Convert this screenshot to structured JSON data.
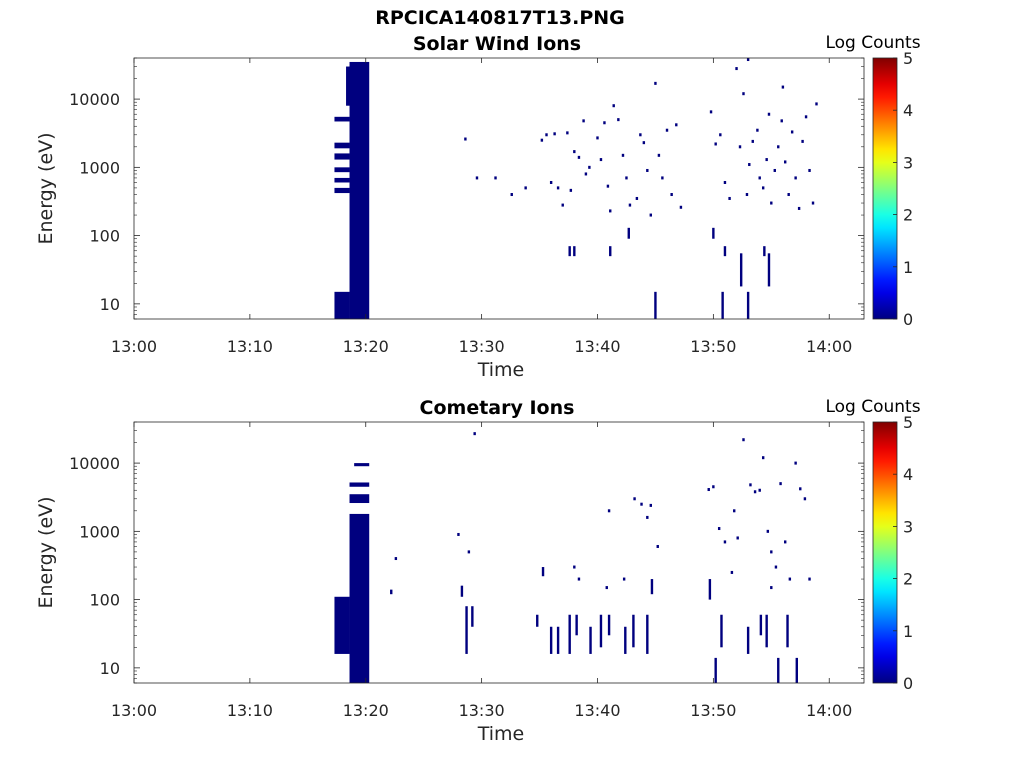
{
  "figure_title": "RPCICA140817T13.PNG",
  "colors": {
    "data": "#00007f",
    "axis": "#262626",
    "background": "#ffffff"
  },
  "colorbar": {
    "title": "Log Counts",
    "ticks": [
      "0",
      "1",
      "2",
      "3",
      "4",
      "5"
    ],
    "colormap": "jet",
    "range": [
      0,
      5
    ]
  },
  "chart_data": [
    {
      "type": "heatmap",
      "title": "Solar Wind Ions",
      "xlabel": "Time",
      "ylabel": "Energy (eV)",
      "x_ticks": [
        "13:00",
        "13:10",
        "13:20",
        "13:30",
        "13:40",
        "13:50",
        "14:00"
      ],
      "y_ticks": [
        "10",
        "100",
        "1000",
        "10000"
      ],
      "xlim_minutes": [
        0,
        63
      ],
      "ylim_eV": [
        6,
        40000
      ],
      "y_scale": "log",
      "value_range": [
        0,
        5
      ],
      "bands": [
        {
          "t0": 17.3,
          "t1": 18.6,
          "e0": 6,
          "e1": 15
        },
        {
          "t0": 17.3,
          "t1": 18.6,
          "e0": 4700,
          "e1": 5500
        },
        {
          "t0": 17.3,
          "t1": 18.6,
          "e0": 1900,
          "e1": 2300
        },
        {
          "t0": 17.3,
          "t1": 18.6,
          "e0": 1300,
          "e1": 1600
        },
        {
          "t0": 17.3,
          "t1": 18.6,
          "e0": 850,
          "e1": 1000
        },
        {
          "t0": 17.3,
          "t1": 18.6,
          "e0": 600,
          "e1": 700
        },
        {
          "t0": 17.3,
          "t1": 18.6,
          "e0": 420,
          "e1": 500
        },
        {
          "t0": 18.3,
          "t1": 18.8,
          "e0": 8000,
          "e1": 30000
        },
        {
          "t0": 18.6,
          "t1": 20.3,
          "e0": 6,
          "e1": 35000
        }
      ],
      "spikes": [
        {
          "t": 37.6,
          "e0": 50,
          "e1": 70
        },
        {
          "t": 38.0,
          "e0": 50,
          "e1": 70
        },
        {
          "t": 41.1,
          "e0": 50,
          "e1": 70
        },
        {
          "t": 42.7,
          "e0": 90,
          "e1": 130
        },
        {
          "t": 45.0,
          "e0": 6,
          "e1": 15
        },
        {
          "t": 50.0,
          "e0": 90,
          "e1": 130
        },
        {
          "t": 50.8,
          "e0": 6,
          "e1": 15
        },
        {
          "t": 51.0,
          "e0": 50,
          "e1": 70
        },
        {
          "t": 52.4,
          "e0": 18,
          "e1": 55
        },
        {
          "t": 53.0,
          "e0": 6,
          "e1": 15
        },
        {
          "t": 54.4,
          "e0": 50,
          "e1": 70
        },
        {
          "t": 54.8,
          "e0": 18,
          "e1": 55
        }
      ],
      "points": [
        [
          28.6,
          2600
        ],
        [
          29.6,
          700
        ],
        [
          31.2,
          700
        ],
        [
          32.6,
          400
        ],
        [
          33.8,
          500
        ],
        [
          35.2,
          2500
        ],
        [
          35.6,
          3000
        ],
        [
          36.3,
          3100
        ],
        [
          36.0,
          600
        ],
        [
          36.6,
          500
        ],
        [
          37.0,
          280
        ],
        [
          37.4,
          3200
        ],
        [
          37.7,
          460
        ],
        [
          38.0,
          1700
        ],
        [
          38.4,
          1400
        ],
        [
          38.8,
          4800
        ],
        [
          39.0,
          800
        ],
        [
          39.3,
          1000
        ],
        [
          40.0,
          2700
        ],
        [
          40.3,
          1300
        ],
        [
          40.6,
          4500
        ],
        [
          40.9,
          530
        ],
        [
          41.1,
          230
        ],
        [
          41.4,
          8000
        ],
        [
          41.8,
          5000
        ],
        [
          42.2,
          1500
        ],
        [
          42.5,
          700
        ],
        [
          42.8,
          280
        ],
        [
          43.4,
          350
        ],
        [
          43.7,
          3000
        ],
        [
          44.0,
          2300
        ],
        [
          44.3,
          900
        ],
        [
          44.6,
          200
        ],
        [
          45.0,
          17000
        ],
        [
          45.3,
          1500
        ],
        [
          45.6,
          700
        ],
        [
          46.0,
          3500
        ],
        [
          46.4,
          400
        ],
        [
          46.8,
          4200
        ],
        [
          47.2,
          260
        ],
        [
          49.8,
          6500
        ],
        [
          50.2,
          2200
        ],
        [
          50.6,
          3000
        ],
        [
          51.0,
          600
        ],
        [
          51.4,
          350
        ],
        [
          52.0,
          28000
        ],
        [
          52.3,
          2000
        ],
        [
          52.6,
          12000
        ],
        [
          52.9,
          400
        ],
        [
          53.1,
          1100
        ],
        [
          53.4,
          2400
        ],
        [
          53.8,
          3500
        ],
        [
          54.0,
          700
        ],
        [
          54.3,
          500
        ],
        [
          54.6,
          1300
        ],
        [
          54.8,
          6000
        ],
        [
          55.0,
          300
        ],
        [
          55.3,
          900
        ],
        [
          55.6,
          2000
        ],
        [
          55.9,
          4800
        ],
        [
          56.2,
          1200
        ],
        [
          56.5,
          400
        ],
        [
          56.8,
          3300
        ],
        [
          57.1,
          700
        ],
        [
          57.4,
          250
        ],
        [
          57.7,
          2400
        ],
        [
          58.0,
          5500
        ],
        [
          58.3,
          900
        ],
        [
          58.6,
          300
        ],
        [
          58.9,
          8500
        ],
        [
          56.0,
          15000
        ],
        [
          53.0,
          38000
        ]
      ]
    },
    {
      "type": "heatmap",
      "title": "Cometary Ions",
      "xlabel": "Time",
      "ylabel": "Energy (eV)",
      "x_ticks": [
        "13:00",
        "13:10",
        "13:20",
        "13:30",
        "13:40",
        "13:50",
        "14:00"
      ],
      "y_ticks": [
        "10",
        "100",
        "1000",
        "10000"
      ],
      "xlim_minutes": [
        0,
        63
      ],
      "ylim_eV": [
        6,
        40000
      ],
      "y_scale": "log",
      "value_range": [
        0,
        5
      ],
      "bands": [
        {
          "t0": 17.3,
          "t1": 18.6,
          "e0": 16,
          "e1": 110
        },
        {
          "t0": 18.6,
          "t1": 20.3,
          "e0": 6,
          "e1": 1800
        },
        {
          "t0": 18.6,
          "t1": 20.3,
          "e0": 2600,
          "e1": 3500
        },
        {
          "t0": 18.6,
          "t1": 20.3,
          "e0": 4500,
          "e1": 5200
        },
        {
          "t0": 19.0,
          "t1": 20.3,
          "e0": 9000,
          "e1": 10000
        }
      ],
      "spikes": [
        {
          "t": 22.2,
          "e0": 120,
          "e1": 140
        },
        {
          "t": 22.6,
          "e0": 380,
          "e1": 420
        },
        {
          "t": 28.3,
          "e0": 110,
          "e1": 160
        },
        {
          "t": 28.7,
          "e0": 16,
          "e1": 80
        },
        {
          "t": 29.2,
          "e0": 40,
          "e1": 80
        },
        {
          "t": 34.8,
          "e0": 40,
          "e1": 60
        },
        {
          "t": 35.3,
          "e0": 220,
          "e1": 300
        },
        {
          "t": 36.0,
          "e0": 16,
          "e1": 40
        },
        {
          "t": 36.6,
          "e0": 16,
          "e1": 40
        },
        {
          "t": 37.6,
          "e0": 16,
          "e1": 60
        },
        {
          "t": 38.2,
          "e0": 30,
          "e1": 60
        },
        {
          "t": 39.4,
          "e0": 16,
          "e1": 40
        },
        {
          "t": 40.3,
          "e0": 20,
          "e1": 60
        },
        {
          "t": 41.0,
          "e0": 30,
          "e1": 60
        },
        {
          "t": 42.4,
          "e0": 16,
          "e1": 40
        },
        {
          "t": 43.1,
          "e0": 20,
          "e1": 60
        },
        {
          "t": 44.3,
          "e0": 16,
          "e1": 60
        },
        {
          "t": 44.7,
          "e0": 120,
          "e1": 200
        },
        {
          "t": 49.7,
          "e0": 100,
          "e1": 200
        },
        {
          "t": 50.2,
          "e0": 6,
          "e1": 14
        },
        {
          "t": 50.7,
          "e0": 20,
          "e1": 60
        },
        {
          "t": 53.0,
          "e0": 16,
          "e1": 40
        },
        {
          "t": 54.1,
          "e0": 30,
          "e1": 60
        },
        {
          "t": 54.6,
          "e0": 20,
          "e1": 60
        },
        {
          "t": 55.6,
          "e0": 6,
          "e1": 14
        },
        {
          "t": 56.4,
          "e0": 20,
          "e1": 60
        },
        {
          "t": 57.2,
          "e0": 6,
          "e1": 14
        }
      ],
      "points": [
        [
          28.0,
          900
        ],
        [
          28.9,
          500
        ],
        [
          29.4,
          27000
        ],
        [
          38.0,
          300
        ],
        [
          38.4,
          200
        ],
        [
          40.8,
          150
        ],
        [
          41.0,
          2000
        ],
        [
          42.3,
          200
        ],
        [
          43.2,
          3000
        ],
        [
          43.8,
          2500
        ],
        [
          44.3,
          1600
        ],
        [
          44.6,
          2400
        ],
        [
          45.2,
          600
        ],
        [
          49.6,
          4100
        ],
        [
          50.0,
          4500
        ],
        [
          50.5,
          1100
        ],
        [
          51.0,
          700
        ],
        [
          51.8,
          2000
        ],
        [
          52.1,
          800
        ],
        [
          52.6,
          22000
        ],
        [
          53.2,
          4800
        ],
        [
          53.6,
          3800
        ],
        [
          54.0,
          4000
        ],
        [
          54.3,
          12000
        ],
        [
          54.7,
          1000
        ],
        [
          55.0,
          500
        ],
        [
          55.4,
          300
        ],
        [
          55.8,
          5000
        ],
        [
          56.2,
          700
        ],
        [
          56.6,
          200
        ],
        [
          57.1,
          10000
        ],
        [
          57.5,
          4200
        ],
        [
          57.9,
          3000
        ],
        [
          58.3,
          200
        ],
        [
          55.0,
          150
        ],
        [
          51.6,
          250
        ]
      ]
    }
  ]
}
